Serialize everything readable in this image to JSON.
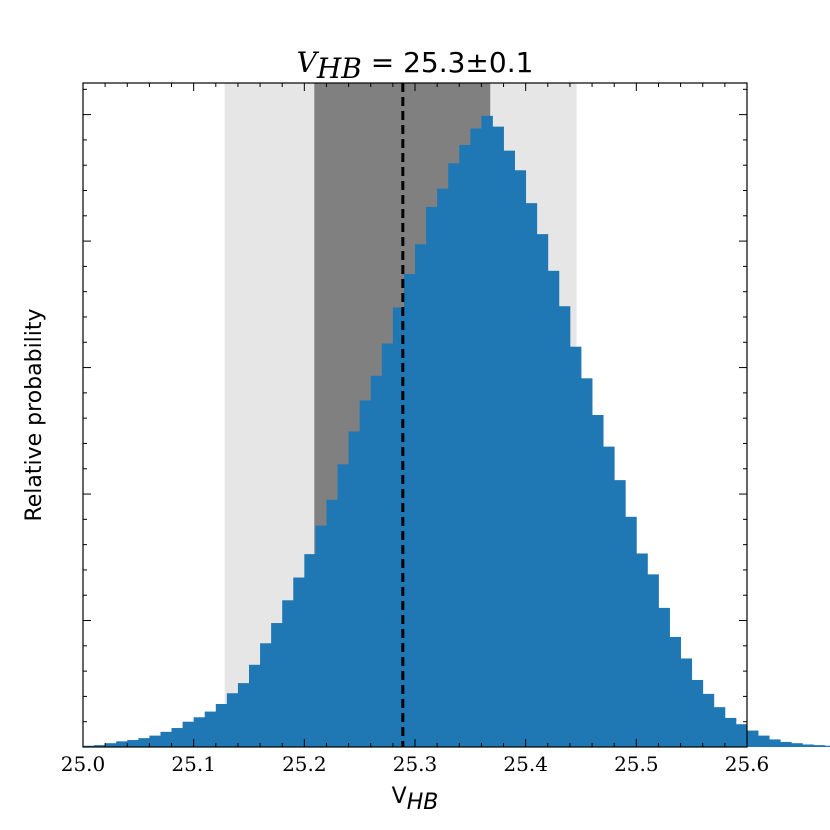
{
  "chart_data": {
    "type": "bar",
    "title": {
      "symbol": "V",
      "subscript": "HB",
      "equals": " = ",
      "value": "25.3±0.1"
    },
    "xlabel": {
      "main": "V",
      "sub": "HB"
    },
    "ylabel": "Relative probability",
    "xlim": [
      25.0,
      25.6
    ],
    "ylim": [
      0,
      1.0
    ],
    "xticks": [
      "25.0",
      "25.1",
      "25.2",
      "25.3",
      "25.4",
      "25.5",
      "25.6"
    ],
    "bin_width": 0.01,
    "bin_start": 25.0,
    "values": [
      0.002,
      0.003,
      0.006,
      0.009,
      0.011,
      0.014,
      0.018,
      0.024,
      0.03,
      0.04,
      0.047,
      0.056,
      0.068,
      0.085,
      0.101,
      0.13,
      0.164,
      0.196,
      0.232,
      0.268,
      0.305,
      0.35,
      0.391,
      0.447,
      0.499,
      0.548,
      0.587,
      0.638,
      0.695,
      0.748,
      0.795,
      0.854,
      0.883,
      0.923,
      0.952,
      0.978,
      0.998,
      0.981,
      0.943,
      0.912,
      0.86,
      0.811,
      0.753,
      0.697,
      0.633,
      0.583,
      0.525,
      0.475,
      0.422,
      0.364,
      0.306,
      0.273,
      0.22,
      0.174,
      0.14,
      0.106,
      0.084,
      0.063,
      0.046,
      0.036,
      0.026,
      0.018,
      0.012,
      0.008,
      0.006,
      0.004,
      0.003,
      0.002
    ],
    "bar_color": "#1f77b4",
    "median": 25.289,
    "band_1sigma": [
      25.209,
      25.368
    ],
    "band_2sigma": [
      25.128,
      25.446
    ],
    "band_1sigma_color": "#808080",
    "band_2sigma_color": "#e6e6e6",
    "median_line_color": "#000000",
    "grid": false
  }
}
